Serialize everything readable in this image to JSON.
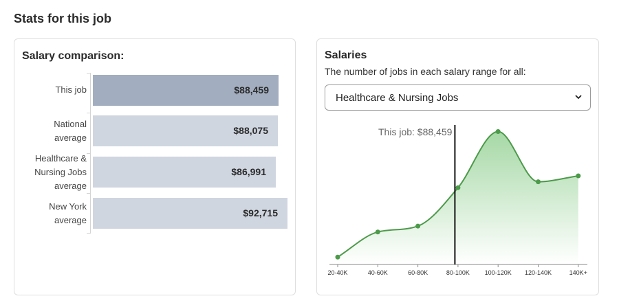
{
  "page": {
    "heading": "Stats for this job"
  },
  "salary_comparison": {
    "title": "Salary comparison:",
    "bars": [
      {
        "label_lines": [
          "This job"
        ],
        "value": "$88,459",
        "amount": 88459,
        "highlight": true
      },
      {
        "label_lines": [
          "National",
          "average"
        ],
        "value": "$88,075",
        "amount": 88075,
        "highlight": false
      },
      {
        "label_lines": [
          "Healthcare &",
          "Nursing Jobs",
          "average"
        ],
        "value": "$86,991",
        "amount": 86991,
        "highlight": false
      },
      {
        "label_lines": [
          "New York",
          "average"
        ],
        "value": "$92,715",
        "amount": 92715,
        "highlight": false
      }
    ],
    "colors": {
      "highlight_bar": "#a2aec0",
      "bar": "#cfd6e0"
    }
  },
  "salaries": {
    "title": "Salaries",
    "subtitle": "The number of jobs in each salary range for all:",
    "select": {
      "value": "Healthcare & Nursing Jobs"
    },
    "marker": {
      "label": "This job: $88,459"
    }
  },
  "chart_data": {
    "type": "area",
    "categories": [
      "20-40K",
      "40-60K",
      "60-80K",
      "80-100K",
      "100-120K",
      "120-140K",
      "140K+"
    ],
    "values": [
      5,
      22,
      26,
      52,
      90,
      56,
      60
    ],
    "ylim": [
      0,
      100
    ],
    "marker_salary": 88459,
    "title": "",
    "xlabel": "",
    "ylabel": "",
    "grid": false,
    "colors": {
      "line": "#4c9a4a",
      "fill": "#5cb85c",
      "marker": "#111111"
    }
  }
}
